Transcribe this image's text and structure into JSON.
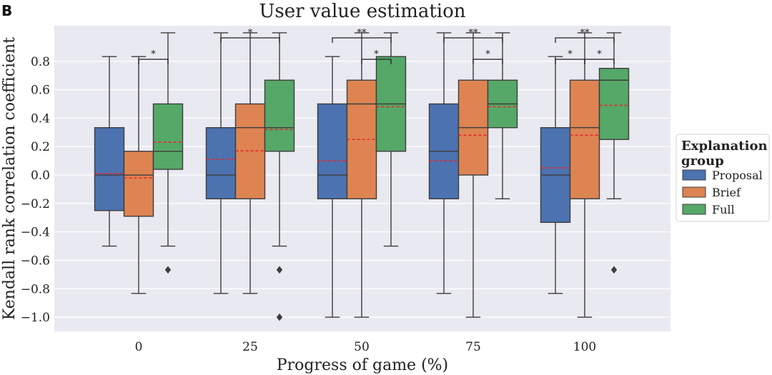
{
  "panel_label": "B",
  "colors": {
    "plot_background": "#e9e9f1",
    "grid": "#ffffff",
    "whisker": "#3d3d3d",
    "mean_line": "#e8262a",
    "outlier": "#3d3d3d"
  },
  "chart_data": {
    "type": "box",
    "title": "User value estimation",
    "xlabel": "Progress of game (%)",
    "ylabel": "Kendall rank correlation coefficient",
    "ylim": [
      -1.1,
      1.05
    ],
    "yticks": [
      {
        "value": 0.8,
        "label": "0.8"
      },
      {
        "value": 0.6,
        "label": "0.6"
      },
      {
        "value": 0.4,
        "label": "0.4"
      },
      {
        "value": 0.2,
        "label": "0.2"
      },
      {
        "value": 0.0,
        "label": "0.0"
      },
      {
        "value": -0.2,
        "label": "−0.2"
      },
      {
        "value": -0.4,
        "label": "−0.4"
      },
      {
        "value": -0.6,
        "label": "−0.6"
      },
      {
        "value": -0.8,
        "label": "−0.8"
      },
      {
        "value": -1.0,
        "label": "−1.0"
      }
    ],
    "categories": [
      "0",
      "25",
      "50",
      "75",
      "100"
    ],
    "legend": {
      "title_lines": [
        "Explanation",
        "group"
      ],
      "position": "right-outside"
    },
    "series": [
      {
        "name": "Proposal",
        "color": "#4c72b0",
        "boxes": [
          {
            "whislo": -0.5,
            "q1": -0.25,
            "median": 0.0,
            "q3": 0.333,
            "whishi": 0.833,
            "mean": 0.01,
            "fliers": []
          },
          {
            "whislo": -0.833,
            "q1": -0.167,
            "median": 0.0,
            "q3": 0.333,
            "whishi": 1.0,
            "mean": 0.11,
            "fliers": []
          },
          {
            "whislo": -1.0,
            "q1": -0.167,
            "median": 0.0,
            "q3": 0.5,
            "whishi": 0.833,
            "mean": 0.1,
            "fliers": []
          },
          {
            "whislo": -0.833,
            "q1": -0.167,
            "median": 0.167,
            "q3": 0.5,
            "whishi": 1.0,
            "mean": 0.1,
            "fliers": []
          },
          {
            "whislo": -0.833,
            "q1": -0.333,
            "median": 0.0,
            "q3": 0.333,
            "whishi": 0.833,
            "mean": 0.05,
            "fliers": []
          }
        ]
      },
      {
        "name": "Brief",
        "color": "#dd8452",
        "boxes": [
          {
            "whislo": -0.833,
            "q1": -0.29,
            "median": 0.0,
            "q3": 0.167,
            "whishi": 0.833,
            "mean": -0.02,
            "fliers": []
          },
          {
            "whislo": -0.833,
            "q1": -0.167,
            "median": 0.333,
            "q3": 0.5,
            "whishi": 1.0,
            "mean": 0.17,
            "fliers": []
          },
          {
            "whislo": -1.0,
            "q1": -0.167,
            "median": 0.5,
            "q3": 0.667,
            "whishi": 1.0,
            "mean": 0.25,
            "fliers": []
          },
          {
            "whislo": -1.0,
            "q1": 0.0,
            "median": 0.333,
            "q3": 0.667,
            "whishi": 1.0,
            "mean": 0.28,
            "fliers": []
          },
          {
            "whislo": -1.0,
            "q1": -0.167,
            "median": 0.333,
            "q3": 0.667,
            "whishi": 1.0,
            "mean": 0.28,
            "fliers": []
          }
        ]
      },
      {
        "name": "Full",
        "color": "#55a868",
        "boxes": [
          {
            "whislo": -0.5,
            "q1": 0.04,
            "median": 0.167,
            "q3": 0.5,
            "whishi": 1.0,
            "mean": 0.23,
            "fliers": [
              -0.667
            ]
          },
          {
            "whislo": -0.5,
            "q1": 0.167,
            "median": 0.333,
            "q3": 0.667,
            "whishi": 1.0,
            "mean": 0.32,
            "fliers": [
              -0.667,
              -1.0
            ]
          },
          {
            "whislo": -0.5,
            "q1": 0.167,
            "median": 0.5,
            "q3": 0.833,
            "whishi": 1.0,
            "mean": 0.48,
            "fliers": []
          },
          {
            "whislo": -0.167,
            "q1": 0.333,
            "median": 0.5,
            "q3": 0.667,
            "whishi": 1.0,
            "mean": 0.48,
            "fliers": []
          },
          {
            "whislo": -0.167,
            "q1": 0.25,
            "median": 0.667,
            "q3": 0.75,
            "whishi": 1.0,
            "mean": 0.49,
            "fliers": [
              -0.667
            ]
          }
        ]
      }
    ],
    "significance": [
      {
        "category": 0,
        "from_series": 1,
        "to_series": 2,
        "level": 1,
        "label": "*"
      },
      {
        "category": 1,
        "from_series": 0,
        "to_series": 2,
        "level": 2,
        "label": "*"
      },
      {
        "category": 2,
        "from_series": 1,
        "to_series": 2,
        "level": 1,
        "label": "*"
      },
      {
        "category": 2,
        "from_series": 0,
        "to_series": 2,
        "level": 2,
        "label": "**"
      },
      {
        "category": 3,
        "from_series": 1,
        "to_series": 2,
        "level": 1,
        "label": "*"
      },
      {
        "category": 3,
        "from_series": 0,
        "to_series": 2,
        "level": 2,
        "label": "**"
      },
      {
        "category": 4,
        "from_series": 0,
        "to_series": 1,
        "level": 1,
        "label": "*"
      },
      {
        "category": 4,
        "from_series": 1,
        "to_series": 2,
        "level": 1,
        "label": "*"
      },
      {
        "category": 4,
        "from_series": 0,
        "to_series": 2,
        "level": 2,
        "label": "**"
      }
    ]
  }
}
